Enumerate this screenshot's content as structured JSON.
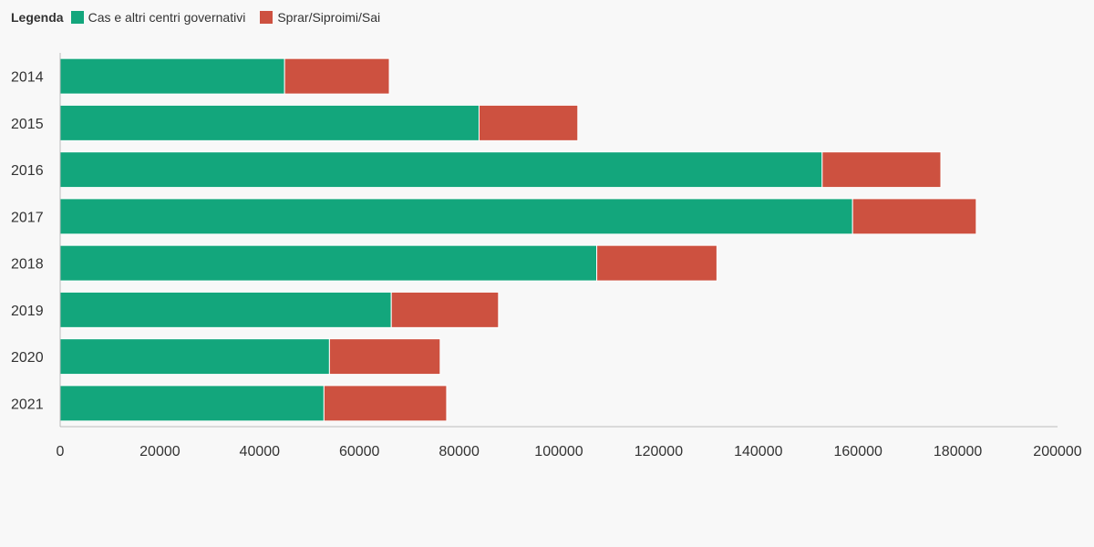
{
  "legend": {
    "title": "Legenda",
    "items": [
      {
        "label": "Cas e altri centri governativi",
        "color": "#13a67c"
      },
      {
        "label": "Sprar/Siproimi/Sai",
        "color": "#cd5140"
      }
    ]
  },
  "chart_data": {
    "type": "bar",
    "orientation": "horizontal",
    "stacked": true,
    "categories": [
      "2014",
      "2015",
      "2016",
      "2017",
      "2018",
      "2019",
      "2020",
      "2021"
    ],
    "series": [
      {
        "name": "Cas e altri centri governativi",
        "color": "#13a67c",
        "values": [
          45000,
          84000,
          152800,
          158900,
          107600,
          66400,
          54000,
          52900
        ]
      },
      {
        "name": "Sprar/Siproimi/Sai",
        "color": "#cd5140",
        "values": [
          21000,
          19800,
          23800,
          24800,
          24100,
          21500,
          22200,
          24600
        ]
      }
    ],
    "xlim": [
      0,
      200000
    ],
    "xticks": [
      0,
      20000,
      40000,
      60000,
      80000,
      100000,
      120000,
      140000,
      160000,
      180000,
      200000
    ],
    "grid": false,
    "legend_position": "top-left"
  }
}
